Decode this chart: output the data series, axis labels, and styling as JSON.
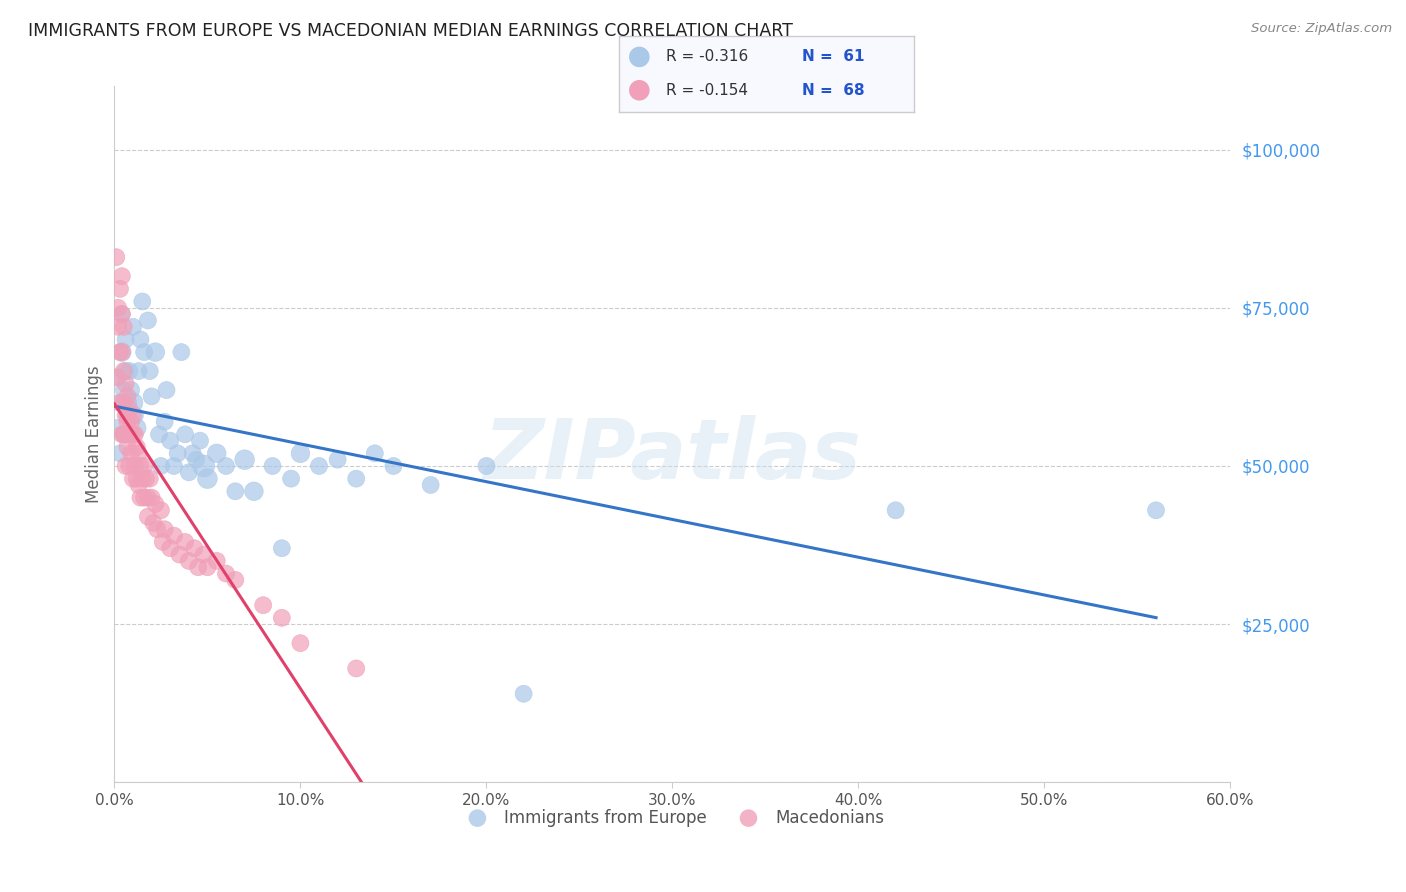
{
  "title": "IMMIGRANTS FROM EUROPE VS MACEDONIAN MEDIAN EARNINGS CORRELATION CHART",
  "source": "Source: ZipAtlas.com",
  "ylabel": "Median Earnings",
  "watermark": "ZIPatlas",
  "blue_series": {
    "color": "#aac8e8",
    "line_color": "#3575c8",
    "R": -0.316,
    "N": 61,
    "x": [
      0.001,
      0.002,
      0.003,
      0.003,
      0.004,
      0.004,
      0.005,
      0.005,
      0.006,
      0.006,
      0.007,
      0.007,
      0.008,
      0.008,
      0.009,
      0.01,
      0.01,
      0.011,
      0.012,
      0.013,
      0.014,
      0.015,
      0.016,
      0.018,
      0.019,
      0.02,
      0.022,
      0.024,
      0.025,
      0.027,
      0.028,
      0.03,
      0.032,
      0.034,
      0.036,
      0.038,
      0.04,
      0.042,
      0.044,
      0.046,
      0.048,
      0.05,
      0.055,
      0.06,
      0.065,
      0.07,
      0.075,
      0.085,
      0.09,
      0.095,
      0.1,
      0.11,
      0.12,
      0.13,
      0.14,
      0.15,
      0.17,
      0.2,
      0.22,
      0.42,
      0.56
    ],
    "y": [
      56000,
      64000,
      52000,
      60000,
      68000,
      74000,
      62000,
      55000,
      70000,
      65000,
      60000,
      58000,
      65000,
      55000,
      62000,
      72000,
      60000,
      58000,
      56000,
      65000,
      70000,
      76000,
      68000,
      73000,
      65000,
      61000,
      68000,
      55000,
      50000,
      57000,
      62000,
      54000,
      50000,
      52000,
      68000,
      55000,
      49000,
      52000,
      51000,
      54000,
      50000,
      48000,
      52000,
      50000,
      46000,
      51000,
      46000,
      50000,
      37000,
      48000,
      52000,
      50000,
      51000,
      48000,
      52000,
      50000,
      47000,
      50000,
      14000,
      43000,
      43000
    ],
    "sizes": [
      150,
      150,
      150,
      150,
      180,
      150,
      150,
      150,
      150,
      150,
      180,
      150,
      150,
      150,
      150,
      150,
      200,
      150,
      180,
      150,
      150,
      150,
      150,
      150,
      150,
      150,
      180,
      150,
      150,
      150,
      150,
      150,
      150,
      150,
      150,
      150,
      150,
      150,
      150,
      150,
      250,
      200,
      180,
      150,
      150,
      200,
      180,
      150,
      150,
      150,
      180,
      150,
      150,
      150,
      150,
      150,
      150,
      150,
      150,
      150,
      150
    ]
  },
  "pink_series": {
    "color": "#f0a0b8",
    "line_color": "#e0406a",
    "line_solid_end": 0.15,
    "R": -0.154,
    "N": 68,
    "x": [
      0.001,
      0.001,
      0.002,
      0.002,
      0.003,
      0.003,
      0.003,
      0.004,
      0.004,
      0.004,
      0.004,
      0.005,
      0.005,
      0.005,
      0.005,
      0.006,
      0.006,
      0.006,
      0.006,
      0.007,
      0.007,
      0.007,
      0.008,
      0.008,
      0.008,
      0.009,
      0.009,
      0.01,
      0.01,
      0.01,
      0.011,
      0.011,
      0.012,
      0.012,
      0.013,
      0.013,
      0.014,
      0.014,
      0.015,
      0.016,
      0.016,
      0.017,
      0.018,
      0.018,
      0.019,
      0.02,
      0.021,
      0.022,
      0.023,
      0.025,
      0.026,
      0.027,
      0.03,
      0.032,
      0.035,
      0.038,
      0.04,
      0.043,
      0.045,
      0.048,
      0.05,
      0.055,
      0.06,
      0.065,
      0.08,
      0.09,
      0.1,
      0.13
    ],
    "y": [
      64000,
      83000,
      72000,
      75000,
      78000,
      68000,
      60000,
      80000,
      74000,
      68000,
      55000,
      72000,
      65000,
      60000,
      55000,
      63000,
      58000,
      55000,
      50000,
      61000,
      57000,
      53000,
      59000,
      55000,
      50000,
      57000,
      52000,
      58000,
      55000,
      48000,
      55000,
      50000,
      53000,
      48000,
      52000,
      47000,
      50000,
      45000,
      48000,
      50000,
      45000,
      48000,
      45000,
      42000,
      48000,
      45000,
      41000,
      44000,
      40000,
      43000,
      38000,
      40000,
      37000,
      39000,
      36000,
      38000,
      35000,
      37000,
      34000,
      36000,
      34000,
      35000,
      33000,
      32000,
      28000,
      26000,
      22000,
      18000
    ],
    "sizes": [
      150,
      150,
      150,
      150,
      150,
      150,
      150,
      150,
      150,
      150,
      150,
      150,
      150,
      150,
      150,
      150,
      150,
      150,
      150,
      150,
      150,
      150,
      150,
      150,
      150,
      150,
      150,
      150,
      150,
      150,
      150,
      150,
      150,
      150,
      150,
      150,
      150,
      150,
      150,
      150,
      150,
      150,
      150,
      150,
      150,
      150,
      150,
      150,
      150,
      150,
      150,
      150,
      150,
      150,
      150,
      150,
      150,
      150,
      150,
      150,
      150,
      150,
      150,
      150,
      150,
      150,
      150,
      150
    ]
  },
  "xlim": [
    0.0,
    0.6
  ],
  "ylim": [
    0,
    110000
  ],
  "yticks": [
    0,
    25000,
    50000,
    75000,
    100000
  ],
  "ytick_labels": [
    "",
    "$25,000",
    "$50,000",
    "$75,000",
    "$100,000"
  ],
  "xticks": [
    0.0,
    0.1,
    0.2,
    0.3,
    0.4,
    0.5,
    0.6
  ],
  "xtick_labels": [
    "0.0%",
    "10.0%",
    "20.0%",
    "30.0%",
    "40.0%",
    "50.0%",
    "60.0%"
  ],
  "background_color": "#ffffff",
  "grid_color": "#cccccc",
  "title_color": "#222222",
  "axis_color": "#666666",
  "ytick_color": "#4499ee",
  "xtick_color": "#555555",
  "watermark_color": "#cce0f0",
  "watermark_alpha": 0.45,
  "legend_box_color": "#f8f8ff",
  "legend_border_color": "#cccccc"
}
